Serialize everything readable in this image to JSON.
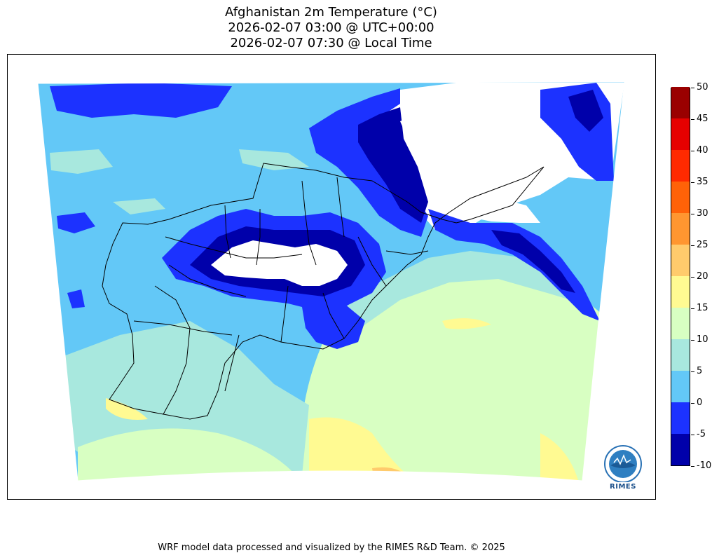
{
  "header": {
    "title": "Afghanistan 2m Temperature (°C)",
    "utc_time": "2026-02-07 03:00 @ UTC+00:00",
    "local_time": "2026-02-07 07:30 @ Local Time"
  },
  "colorbar": {
    "ticks": [
      "50",
      "45",
      "40",
      "35",
      "30",
      "25",
      "20",
      "15",
      "10",
      "5",
      "0",
      "-5",
      "-10"
    ],
    "colors": [
      "#0000aa",
      "#1c32ff",
      "#63c8f7",
      "#a8e8de",
      "#d8ffc2",
      "#fffa92",
      "#ffcb6c",
      "#ff9630",
      "#ff6208",
      "#ff2a00",
      "#e60000",
      "#9a0000"
    ]
  },
  "map": {
    "colors": {
      "deep_blue": "#0000aa",
      "blue": "#1c32ff",
      "light_blue": "#63c8f7",
      "aqua": "#a8e8de",
      "pale_green": "#d8ffc2",
      "yellow": "#fffa92",
      "orange": "#ffcb6c"
    }
  },
  "logo": {
    "text": "RIMES"
  },
  "footer": {
    "credit": "WRF model data processed and visualized by the RIMES R&D Team. © 2025"
  }
}
